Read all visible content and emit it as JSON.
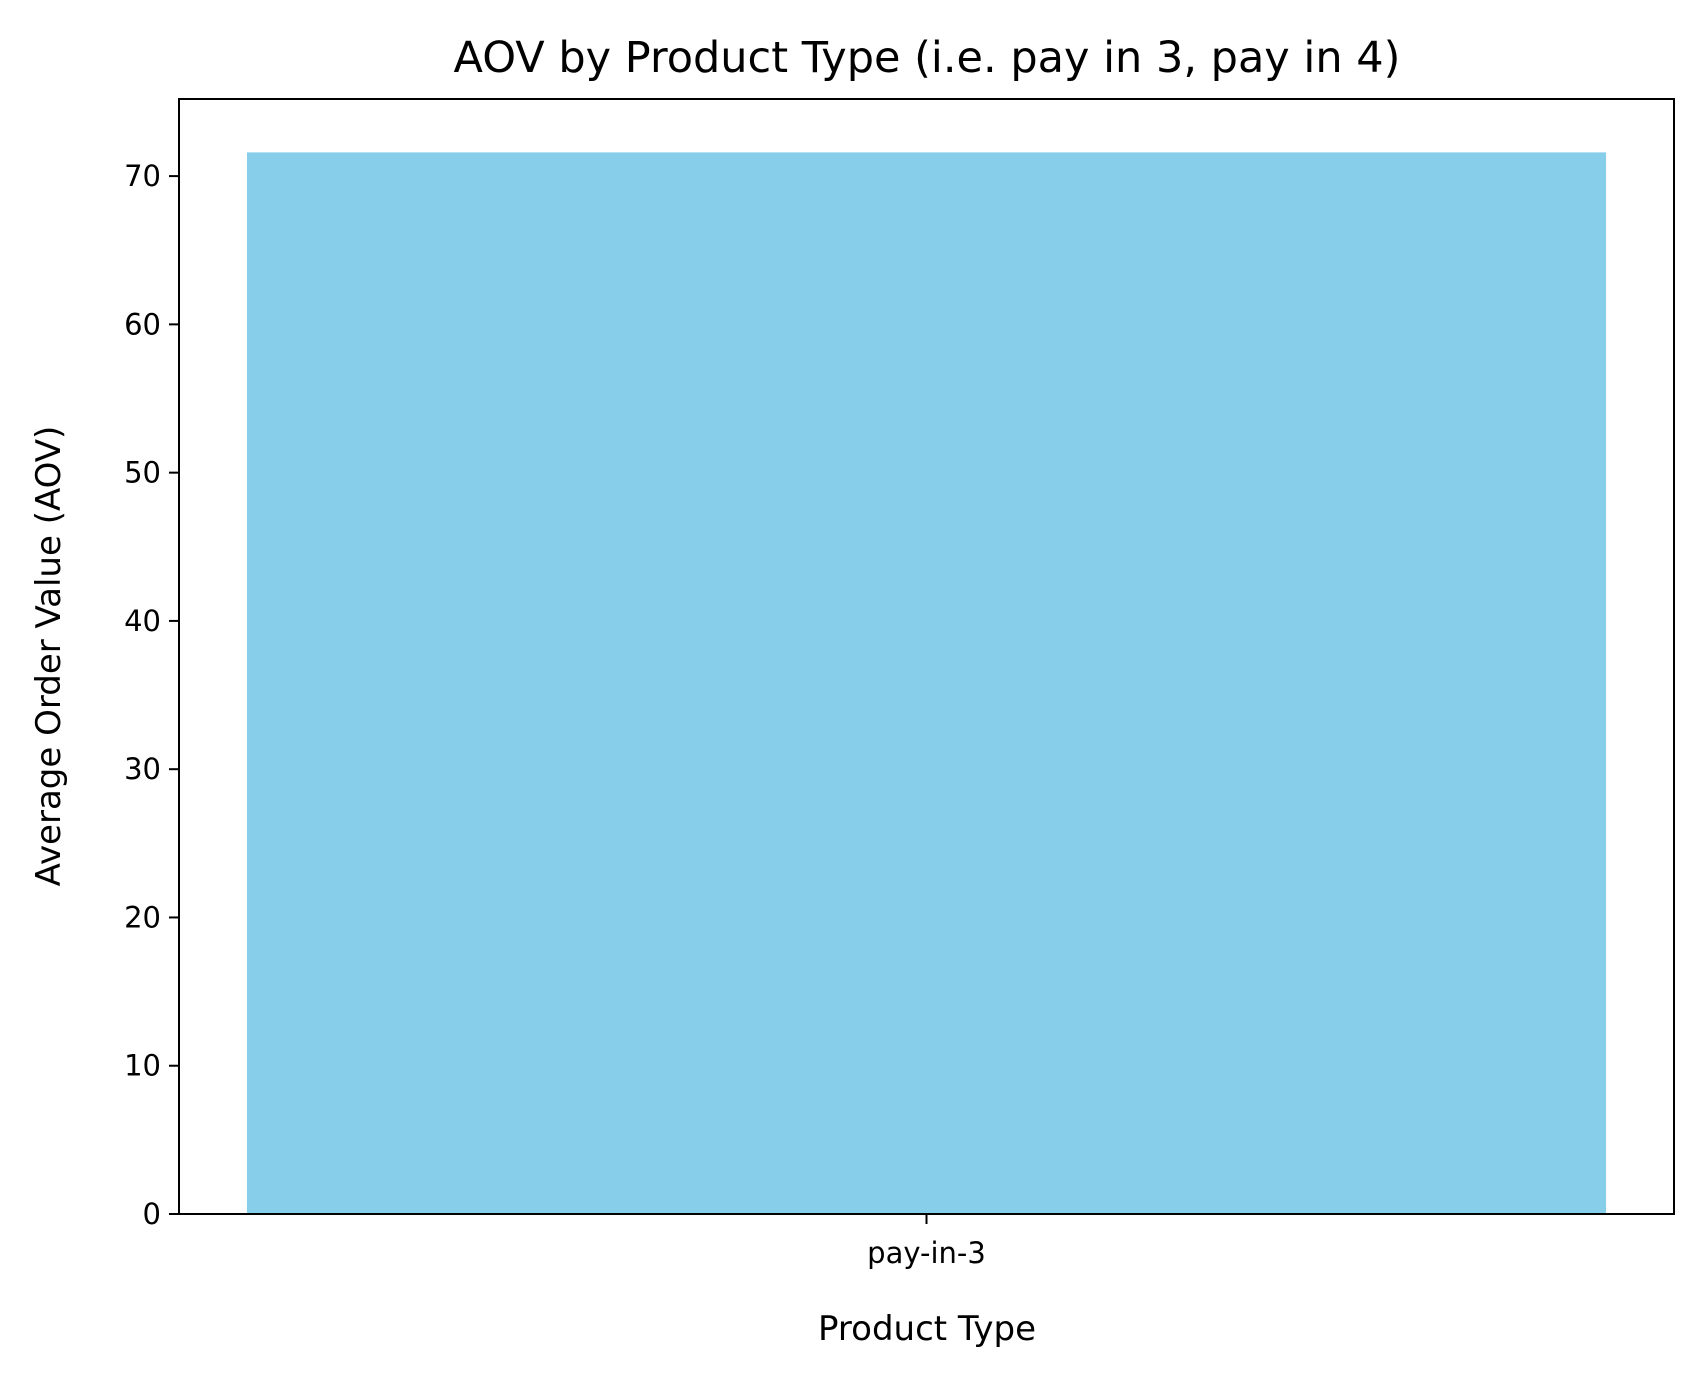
{
  "chart_data": {
    "type": "bar",
    "title": "AOV by Product Type (i.e. pay in 3, pay in 4)",
    "xlabel": "Product Type",
    "ylabel": "Average Order Value (AOV)",
    "categories": [
      "pay-in-3"
    ],
    "values": [
      71.6
    ],
    "ylim": [
      0,
      75.2
    ],
    "yticks": [
      0,
      10,
      20,
      30,
      40,
      50,
      60,
      70
    ],
    "grid": false,
    "legend": "none",
    "bar_color": "#87CEEB",
    "axis_color": "#000000",
    "background": "#ffffff"
  }
}
